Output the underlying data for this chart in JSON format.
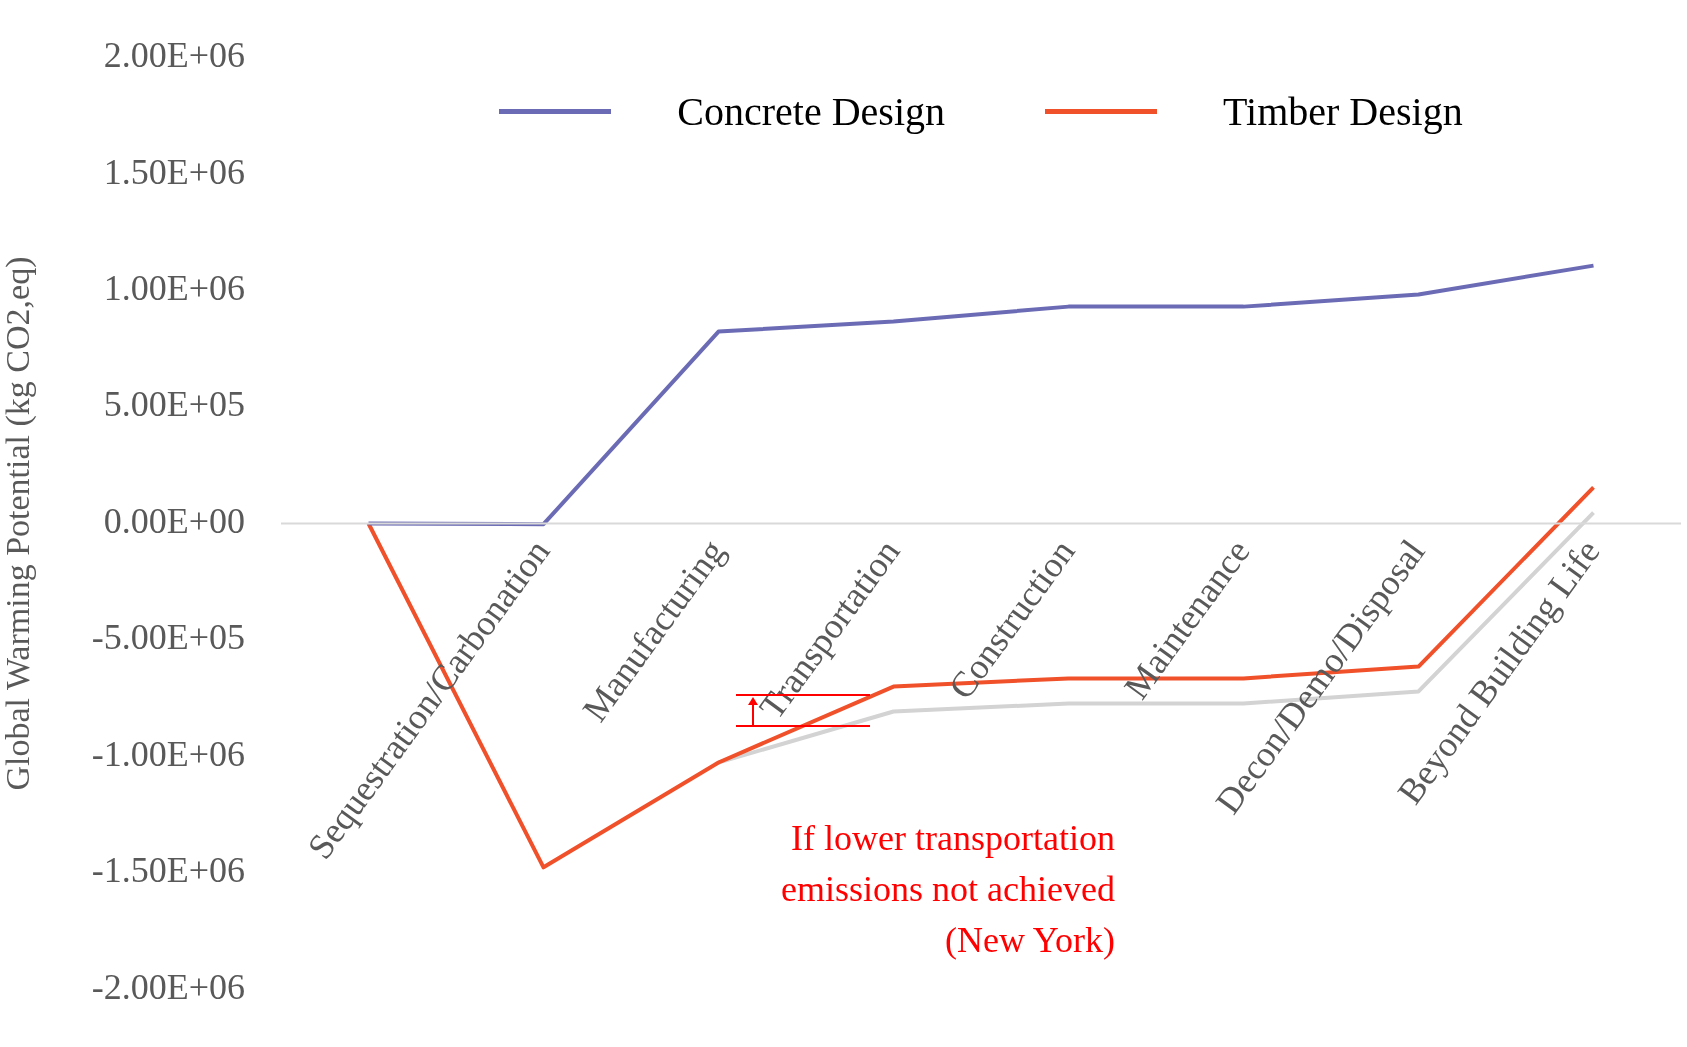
{
  "chart_data": {
    "type": "line",
    "ylabel": "Global Warming Potential (kg CO2,eq)",
    "categories": [
      null,
      "Sequestration/Carbonation",
      "Manufacturing",
      "Transportation",
      "Construction",
      "Maintenance",
      "Decon/Demo/Disposal",
      "Beyond Building Life"
    ],
    "series": [
      {
        "name": "Concrete Design",
        "color": "#6b6bb5",
        "values": [
          0,
          -3000,
          824000,
          867000,
          931000,
          931000,
          983000,
          1107000
        ]
      },
      {
        "name": "Timber Design",
        "color": "#f0502a",
        "values": [
          0,
          -1476000,
          -1026000,
          -700000,
          -665000,
          -665000,
          -614000,
          155000
        ]
      },
      {
        "color": "#d3d3d3",
        "values": [
          null,
          null,
          -1026000,
          -807000,
          -773000,
          -773000,
          -721000,
          47000
        ]
      }
    ],
    "ylim": [
      -2000000,
      2000000
    ],
    "yticks": [
      {
        "value": -2000000,
        "label": "-2.00E+06"
      },
      {
        "value": -1500000,
        "label": "-1.50E+06"
      },
      {
        "value": -1000000,
        "label": "-1.00E+06"
      },
      {
        "value": -500000,
        "label": "-5.00E+05"
      },
      {
        "value": 0,
        "label": "0.00E+00"
      },
      {
        "value": 500000,
        "label": "5.00E+05"
      },
      {
        "value": 1000000,
        "label": "1.00E+06"
      },
      {
        "value": 1500000,
        "label": "1.50E+06"
      },
      {
        "value": 2000000,
        "label": "2.00E+06"
      }
    ],
    "grid": false,
    "legend": "top",
    "marker": "none",
    "line_style": "solid",
    "annotations": [
      "If lower transportation emissions not achieved (New York)"
    ]
  }
}
